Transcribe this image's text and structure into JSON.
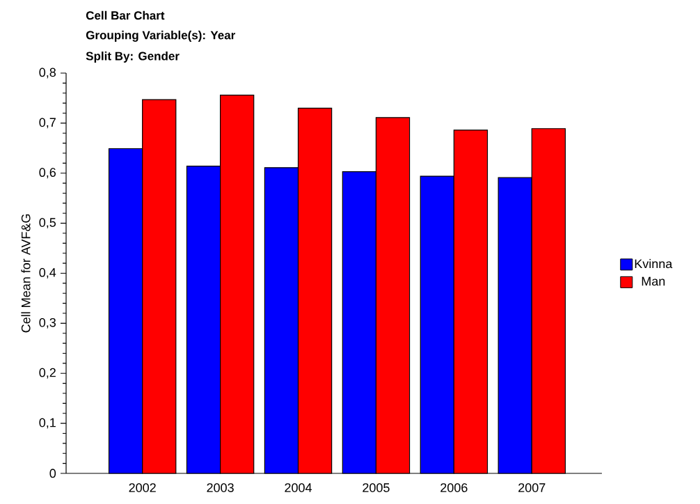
{
  "chart_data": {
    "type": "bar",
    "title": "Cell Bar Chart",
    "subtitle": "Grouping Variable(s): Year",
    "annotations": [
      "Split By: Gender"
    ],
    "ylabel": "Cell Mean for AVF&G",
    "categories": [
      "2002",
      "2003",
      "2004",
      "2005",
      "2006",
      "2007"
    ],
    "series": [
      {
        "name": "Kvinna",
        "color": "#0000ff",
        "values": [
          0.649,
          0.614,
          0.611,
          0.603,
          0.594,
          0.591
        ]
      },
      {
        "name": "Man",
        "color": "#ff0000",
        "values": [
          0.747,
          0.756,
          0.73,
          0.711,
          0.686,
          0.689
        ]
      }
    ],
    "ylim": [
      0,
      0.8
    ],
    "yticks": [
      0,
      {
        "value": 0.1,
        "label": "0,1"
      },
      {
        "value": 0.2,
        "label": "0,2"
      },
      {
        "value": 0.3,
        "label": "0,3"
      },
      {
        "value": 0.4,
        "label": "0,4"
      },
      {
        "value": 0.5,
        "label": "0,5"
      },
      {
        "value": 0.6,
        "label": "0,6"
      },
      {
        "value": 0.7,
        "label": "0,7"
      },
      {
        "value": 0.8,
        "label": "0,8"
      }
    ],
    "legend": "right",
    "grid": false
  }
}
